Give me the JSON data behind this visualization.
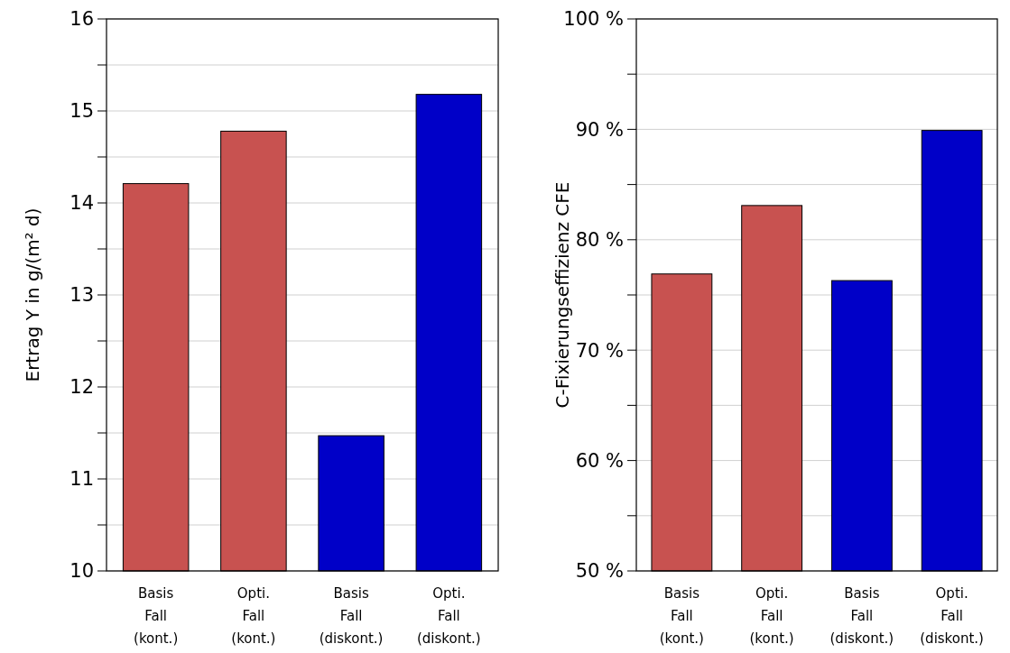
{
  "chart_data": [
    {
      "type": "bar",
      "ylabel": "Ertrag Y in g/(m² d)",
      "categories": [
        "Basis Fall (kont.)",
        "Opti. Fall (kont.)",
        "Basis Fall (diskont.)",
        "Opti. Fall (diskont.)"
      ],
      "values": [
        14.21,
        14.78,
        11.47,
        15.18
      ],
      "colors": [
        "#c85250",
        "#c85250",
        "#0000c8",
        "#0000c8"
      ],
      "ylim": [
        10,
        16
      ],
      "yticks": [
        10,
        {
          "value": 10.5,
          "label": null
        },
        11,
        {
          "value": 11.5,
          "label": null
        },
        12,
        {
          "value": 12.5,
          "label": null
        },
        13,
        {
          "value": 13.5,
          "label": null
        },
        14,
        {
          "value": 14.5,
          "label": null
        },
        15,
        {
          "value": 15.5,
          "label": null
        },
        16
      ],
      "grid": "y"
    },
    {
      "type": "bar",
      "ylabel": "C-Fixierungseffizienz CFE",
      "categories": [
        "Basis Fall (kont.)",
        "Opti. Fall (kont.)",
        "Basis Fall (diskont.)",
        "Opti. Fall (diskont.)"
      ],
      "values": [
        76.9,
        83.1,
        76.3,
        89.9
      ],
      "colors": [
        "#c85250",
        "#c85250",
        "#0000c8",
        "#0000c8"
      ],
      "ylim": [
        50,
        100
      ],
      "yticks": [
        {
          "value": 50,
          "label": "50 %"
        },
        {
          "value": 55,
          "label": null
        },
        {
          "value": 60,
          "label": "60 %"
        },
        {
          "value": 65,
          "label": null
        },
        {
          "value": 70,
          "label": "70 %"
        },
        {
          "value": 75,
          "label": null
        },
        {
          "value": 80,
          "label": "80 %"
        },
        {
          "value": 85,
          "label": null
        },
        {
          "value": 90,
          "label": "90 %"
        },
        {
          "value": 95,
          "label": null
        },
        {
          "value": 100,
          "label": "100 %"
        }
      ],
      "grid": "y"
    }
  ]
}
